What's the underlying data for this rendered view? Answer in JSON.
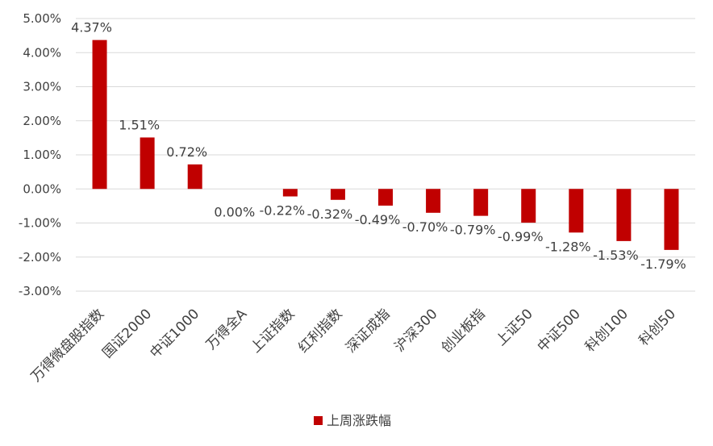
{
  "chart_data": {
    "type": "bar",
    "title": "",
    "xlabel": "",
    "ylabel": "",
    "ylim": [
      -3.0,
      5.0
    ],
    "yticks": [
      5.0,
      4.0,
      3.0,
      2.0,
      1.0,
      0.0,
      -1.0,
      -2.0,
      -3.0
    ],
    "ytick_labels": [
      "5.00%",
      "4.00%",
      "3.00%",
      "2.00%",
      "1.00%",
      "0.00%",
      "-1.00%",
      "-2.00%",
      "-3.00%"
    ],
    "grid": true,
    "legend_position": "bottom",
    "categories": [
      "万得微盘股指数",
      "国证2000",
      "中证1000",
      "万得全A",
      "上证指数",
      "红利指数",
      "深证成指",
      "沪深300",
      "创业板指",
      "上证50",
      "中证500",
      "科创100",
      "科创50"
    ],
    "series": [
      {
        "name": "上周涨跌幅",
        "color": "#C00000",
        "values": [
          4.37,
          1.51,
          0.72,
          0.0,
          -0.22,
          -0.32,
          -0.49,
          -0.7,
          -0.79,
          -0.99,
          -1.28,
          -1.53,
          -1.79
        ],
        "labels": [
          "4.37%",
          "1.51%",
          "0.72%",
          "0.00%",
          "-0.22%",
          "-0.32%",
          "-0.49%",
          "-0.70%",
          "-0.79%",
          "-0.99%",
          "-1.28%",
          "-1.53%",
          "-1.79%"
        ]
      }
    ]
  }
}
